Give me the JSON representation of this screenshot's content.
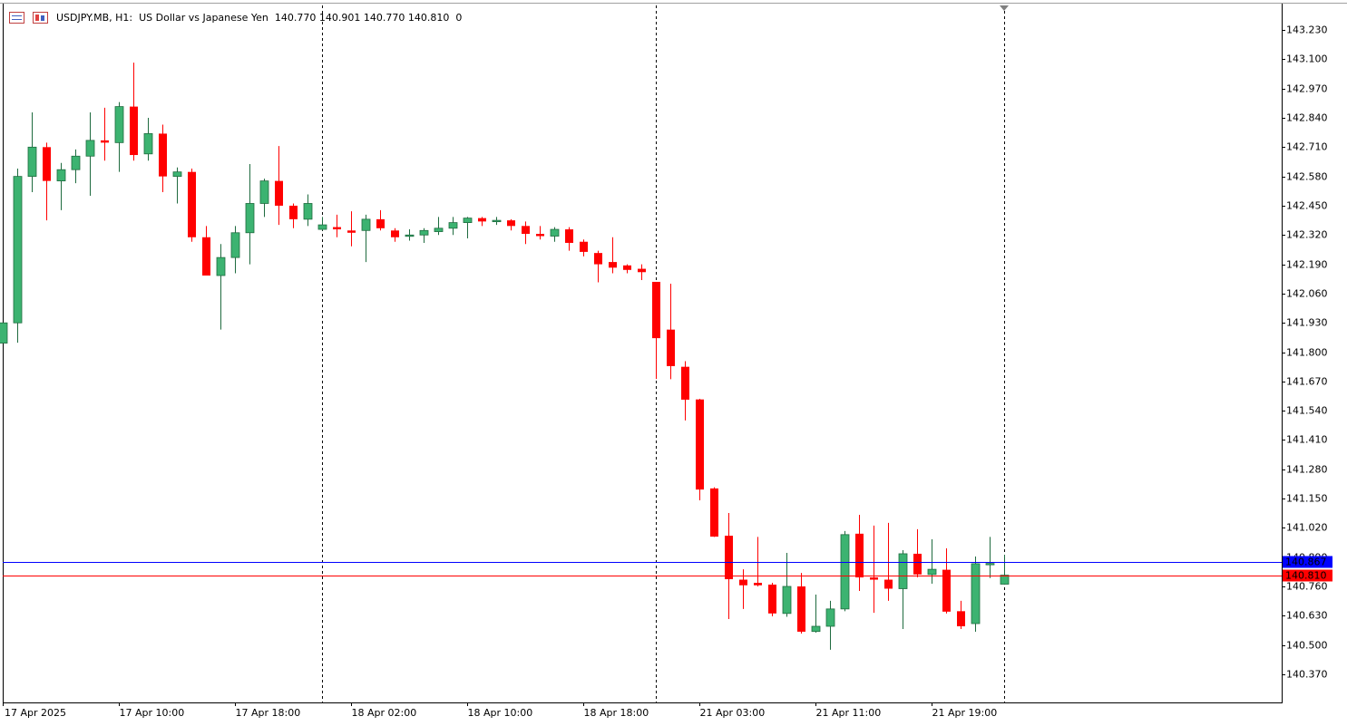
{
  "chart_data": {
    "type": "candlestick",
    "title": "USDJPY.MB, H1:  US Dollar vs Japanese Yen  140.770 140.901 140.770 140.810  0",
    "categories": [
      "17 Apr 2025",
      null,
      null,
      null,
      null,
      null,
      null,
      null,
      "17 Apr 10:00",
      null,
      null,
      null,
      null,
      null,
      null,
      null,
      "17 Apr 18:00",
      null,
      null,
      null,
      null,
      null,
      null,
      null,
      "18 Apr 02:00",
      null,
      null,
      null,
      null,
      null,
      null,
      null,
      "18 Apr 10:00",
      null,
      null,
      null,
      null,
      null,
      null,
      null,
      "18 Apr 18:00",
      null,
      null,
      null,
      null,
      null,
      null,
      null,
      "21 Apr 03:00",
      null,
      null,
      null,
      null,
      null,
      null,
      null,
      "21 Apr 11:00",
      null,
      null,
      null,
      null,
      null,
      null,
      null,
      "21 Apr 19:00",
      null,
      null,
      null,
      null,
      null
    ],
    "open": [
      141.84,
      141.93,
      142.58,
      142.71,
      142.56,
      142.61,
      142.67,
      142.74,
      142.73,
      142.89,
      142.68,
      142.77,
      142.58,
      142.6,
      142.31,
      142.14,
      142.22,
      142.33,
      142.46,
      142.56,
      142.45,
      142.39,
      142.345,
      142.355,
      142.34,
      142.34,
      142.39,
      142.34,
      142.315,
      142.32,
      142.335,
      142.35,
      142.375,
      142.395,
      142.38,
      142.385,
      142.36,
      142.325,
      142.315,
      142.345,
      142.29,
      142.24,
      142.2,
      142.185,
      142.17,
      142.112,
      141.9,
      141.735,
      141.59,
      141.195,
      140.985,
      140.79,
      140.776,
      140.768,
      140.64,
      140.76,
      140.56,
      140.583,
      140.66,
      140.994,
      140.8,
      140.79,
      140.75,
      140.905,
      140.813,
      140.834,
      140.65,
      140.595,
      140.86,
      140.77
    ],
    "high": [
      141.93,
      142.615,
      142.864,
      142.73,
      142.64,
      142.7,
      142.864,
      142.885,
      142.91,
      143.085,
      142.84,
      142.81,
      142.62,
      142.615,
      142.36,
      142.28,
      142.36,
      142.635,
      142.57,
      142.715,
      142.46,
      142.5,
      142.4,
      142.41,
      142.425,
      142.41,
      142.43,
      142.35,
      142.345,
      142.35,
      142.4,
      142.4,
      142.4,
      142.4,
      142.4,
      142.39,
      142.38,
      142.36,
      142.355,
      142.355,
      142.3,
      142.25,
      142.31,
      142.19,
      142.19,
      142.112,
      142.104,
      141.76,
      141.593,
      141.2,
      141.086,
      140.836,
      140.98,
      140.776,
      140.909,
      140.82,
      140.724,
      140.696,
      141.006,
      141.078,
      141.03,
      141.042,
      140.921,
      141.014,
      140.969,
      140.929,
      140.696,
      140.893,
      140.98,
      140.901
    ],
    "low": [
      141.84,
      141.842,
      142.51,
      142.385,
      142.43,
      142.55,
      142.494,
      142.65,
      142.6,
      142.65,
      142.65,
      142.51,
      142.46,
      142.29,
      142.14,
      141.9,
      142.15,
      142.19,
      142.4,
      142.365,
      142.35,
      142.36,
      142.34,
      142.31,
      142.27,
      142.2,
      142.34,
      142.29,
      142.295,
      142.285,
      142.32,
      142.32,
      142.305,
      142.36,
      142.365,
      142.34,
      142.28,
      142.3,
      142.29,
      142.25,
      142.225,
      142.11,
      142.15,
      142.15,
      142.12,
      141.681,
      141.68,
      141.497,
      141.142,
      140.98,
      140.615,
      140.66,
      140.76,
      140.627,
      140.625,
      140.551,
      140.555,
      140.479,
      140.65,
      140.74,
      140.643,
      140.696,
      140.571,
      140.8,
      140.772,
      140.64,
      140.571,
      140.559,
      140.797,
      140.77
    ],
    "close": [
      141.93,
      142.58,
      142.71,
      142.56,
      142.61,
      142.67,
      142.74,
      142.73,
      142.89,
      142.675,
      142.77,
      142.58,
      142.6,
      142.31,
      142.14,
      142.22,
      142.33,
      142.46,
      142.56,
      142.45,
      142.39,
      142.46,
      142.365,
      142.345,
      142.33,
      142.39,
      142.35,
      142.31,
      142.32,
      142.34,
      142.35,
      142.375,
      142.395,
      142.38,
      142.385,
      142.36,
      142.325,
      142.315,
      142.345,
      142.285,
      142.245,
      142.19,
      142.175,
      142.165,
      142.155,
      141.862,
      141.738,
      141.589,
      141.19,
      140.981,
      140.792,
      140.765,
      140.765,
      140.64,
      140.76,
      140.559,
      140.583,
      140.66,
      140.99,
      140.8,
      140.79,
      140.75,
      140.905,
      140.813,
      140.836,
      140.648,
      140.583,
      140.861,
      140.862,
      140.81
    ],
    "up_color": "#3cb371",
    "down_color": "#ff0000",
    "ylim": [
      140.245,
      143.339
    ],
    "yticks": [
      {
        "value": 143.23,
        "label": "143.230"
      },
      {
        "value": 143.1,
        "label": "143.100"
      },
      {
        "value": 142.97,
        "label": "142.970"
      },
      {
        "value": 142.84,
        "label": "142.840"
      },
      {
        "value": 142.71,
        "label": "142.710"
      },
      {
        "value": 142.58,
        "label": "142.580"
      },
      {
        "value": 142.45,
        "label": "142.450"
      },
      {
        "value": 142.32,
        "label": "142.320"
      },
      {
        "value": 142.19,
        "label": "142.190"
      },
      {
        "value": 142.06,
        "label": "142.060"
      },
      {
        "value": 141.93,
        "label": "141.930"
      },
      {
        "value": 141.8,
        "label": "141.800"
      },
      {
        "value": 141.67,
        "label": "141.670"
      },
      {
        "value": 141.54,
        "label": "141.540"
      },
      {
        "value": 141.41,
        "label": "141.410"
      },
      {
        "value": 141.28,
        "label": "141.280"
      },
      {
        "value": 141.15,
        "label": "141.150"
      },
      {
        "value": 141.02,
        "label": "141.020"
      },
      {
        "value": 140.89,
        "label": "140.890"
      },
      {
        "value": 140.76,
        "label": "140.760"
      },
      {
        "value": 140.63,
        "label": "140.630"
      },
      {
        "value": 140.5,
        "label": "140.500"
      },
      {
        "value": 140.37,
        "label": "140.370"
      }
    ],
    "price_lines": [
      {
        "value": 140.867,
        "color": "#0000ff"
      },
      {
        "value": 140.81,
        "label": "140.810",
        "color": "#ff0000"
      }
    ],
    "grid": false
  }
}
